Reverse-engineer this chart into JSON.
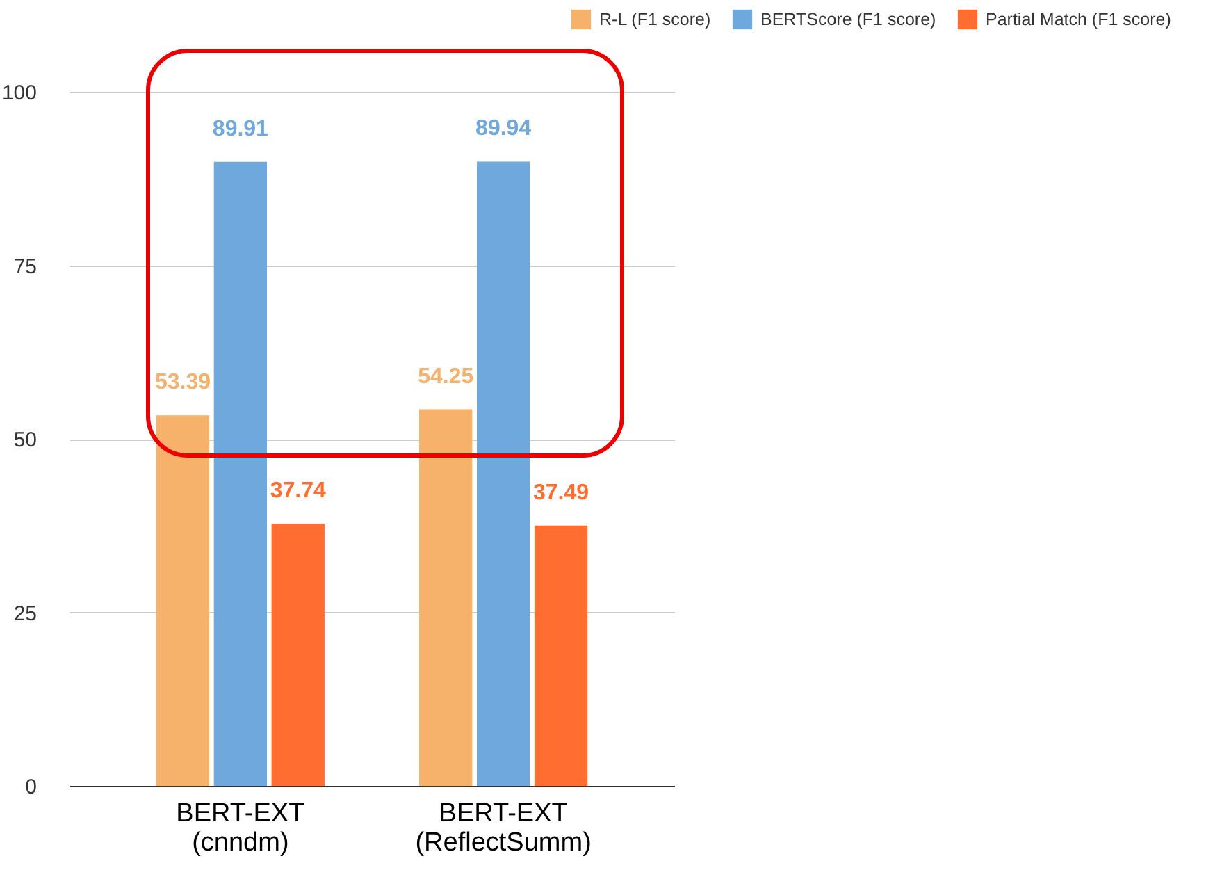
{
  "chart_data": {
    "type": "bar",
    "categories": [
      "BERT-EXT\n(cnndm)",
      "BERT-EXT\n(ReflectSumm)"
    ],
    "series": [
      {
        "name": "R-L (F1 score)",
        "color": "#f6b26b",
        "values": [
          53.39,
          54.25
        ]
      },
      {
        "name": "BERTScore (F1 score)",
        "color": "#6fa8dc",
        "values": [
          89.91,
          89.94
        ]
      },
      {
        "name": "Partial Match (F1 score)",
        "color": "#ff6d31",
        "values": [
          37.74,
          37.49
        ]
      }
    ],
    "ylim": [
      0,
      100
    ],
    "yticks": [
      0,
      25,
      50,
      75,
      100
    ],
    "grid": "y",
    "legend": "top right",
    "data_labels": true
  }
}
